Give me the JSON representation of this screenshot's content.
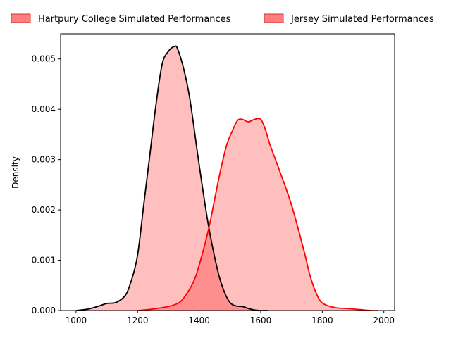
{
  "chart_data": {
    "type": "area",
    "title": "",
    "xlabel": "",
    "ylabel": "Density",
    "xlim": [
      950,
      2035
    ],
    "ylim": [
      0,
      0.0055
    ],
    "xticks": [
      1000,
      1200,
      1400,
      1600,
      1800,
      2000
    ],
    "yticks": [
      0.0,
      0.001,
      0.002,
      0.003,
      0.004,
      0.005
    ],
    "ytick_labels": [
      "0.000",
      "0.001",
      "0.002",
      "0.003",
      "0.004",
      "0.005"
    ],
    "grid": false,
    "legend_placement": "top, outside plot",
    "series": [
      {
        "name": "Hartpury College Simulated Performances",
        "fill_color": "#ff0000",
        "fill_alpha": 0.25,
        "line_color": "#000000",
        "x": [
          1000,
          1040,
          1070,
          1100,
          1130,
          1160,
          1180,
          1200,
          1220,
          1240,
          1260,
          1280,
          1300,
          1320,
          1330,
          1350,
          1370,
          1400,
          1430,
          1460,
          1480,
          1500,
          1520,
          1540,
          1560,
          1580,
          1600,
          1625
        ],
        "y": [
          0.0,
          3e-05,
          8e-05,
          0.00014,
          0.00016,
          0.0003,
          0.0006,
          0.0011,
          0.0021,
          0.0031,
          0.0041,
          0.0049,
          0.00515,
          0.00525,
          0.0052,
          0.0048,
          0.0042,
          0.0029,
          0.0017,
          0.0008,
          0.0004,
          0.00016,
          9e-05,
          8e-05,
          4e-05,
          1e-05,
          0.0,
          0.0
        ]
      },
      {
        "name": "Jersey Simulated Performances",
        "fill_color": "#ff0000",
        "fill_alpha": 0.25,
        "line_color": "#ff0000",
        "x": [
          1200,
          1250,
          1300,
          1330,
          1350,
          1380,
          1400,
          1430,
          1450,
          1470,
          1490,
          1510,
          1525,
          1540,
          1560,
          1580,
          1600,
          1615,
          1630,
          1660,
          1700,
          1740,
          1760,
          1780,
          1800,
          1840,
          1880,
          1920,
          1960,
          1980
        ],
        "y": [
          0.0,
          3e-05,
          8e-05,
          0.00014,
          0.00025,
          0.00055,
          0.0009,
          0.0016,
          0.0022,
          0.0028,
          0.0033,
          0.0036,
          0.00378,
          0.0038,
          0.00375,
          0.0038,
          0.0038,
          0.0036,
          0.0033,
          0.0028,
          0.0021,
          0.0012,
          0.0007,
          0.00035,
          0.00015,
          6e-05,
          4e-05,
          2e-05,
          0.0,
          0.0
        ]
      }
    ]
  }
}
